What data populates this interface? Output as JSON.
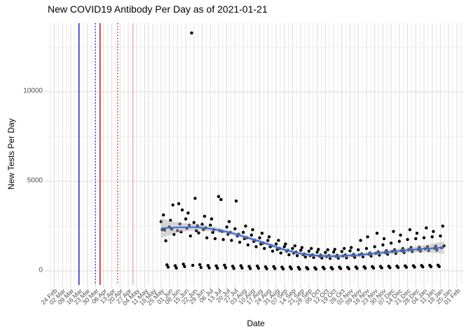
{
  "chart_data": {
    "type": "scatter",
    "title": "New COVID19 Antibody Per Day as of 2021-01-21",
    "xlabel": "Date",
    "ylabel": "New Tests Per Day",
    "legend": "none",
    "grid": true,
    "x_axis_start_date": "2020-02-24",
    "x_tick_interval_days": 7,
    "x_tick_labels": [
      "24 Feb",
      "02 Mar",
      "09 Mar",
      "16 Mar",
      "23 Mar",
      "30 Mar",
      "06 Apr",
      "13 Apr",
      "20 Apr",
      "27 Apr",
      "04 May",
      "11 May",
      "18 May",
      "25 May",
      "01 Jun",
      "08 Jun",
      "15 Jun",
      "22 Jun",
      "29 Jun",
      "06 Jul",
      "13 Jul",
      "20 Jul",
      "27 Jul",
      "03 Aug",
      "10 Aug",
      "17 Aug",
      "24 Aug",
      "31 Aug",
      "07 Sep",
      "14 Sep",
      "21 Sep",
      "28 Sep",
      "05 Oct",
      "12 Oct",
      "19 Oct",
      "26 Oct",
      "02 Nov",
      "09 Nov",
      "16 Nov",
      "23 Nov",
      "30 Nov",
      "07 Dec",
      "14 Dec",
      "21 Dec",
      "28 Dec",
      "04 Jan",
      "11 Jan",
      "18 Jan",
      "25 Jan",
      "01 Feb"
    ],
    "y_ticks": [
      0,
      5000,
      10000
    ],
    "y_minor_ticks": [
      2500,
      7500,
      12500
    ],
    "ylim": [
      -780,
      13830
    ],
    "colors": {
      "point": "#000000",
      "smooth_line": "#3366E0",
      "ribbon": "#AFAFAF",
      "grid_major": "#DBDBDB",
      "grid_minor": "#ECECEC",
      "tick_mark": "#CFCFCF",
      "axis_text": "#4D4D4D",
      "title_text": "#000000",
      "background": "#FFFFFF",
      "vline_blue": "#1414CC",
      "vline_red": "#DD0000",
      "vline_pink": "#F3AABB"
    },
    "reference_lines": [
      {
        "date_offset_days": 21,
        "approx_date": "2020-03-16",
        "color": "#1414CC",
        "style": "solid"
      },
      {
        "date_offset_days": 35,
        "approx_date": "2020-03-30",
        "color": "#1414CC",
        "style": "dotted"
      },
      {
        "date_offset_days": 39,
        "approx_date": "2020-04-03",
        "color": "#DD0000",
        "style": "solid"
      },
      {
        "date_offset_days": 54,
        "approx_date": "2020-04-18",
        "color": "#CC2222",
        "style": "dotted"
      },
      {
        "date_offset_days": 67,
        "approx_date": "2020-05-01",
        "color": "#F3AABB",
        "style": "solid"
      },
      {
        "date_offset_days": 80,
        "approx_date": "2020-05-14",
        "color": "#F6C2CE",
        "style": "dotted"
      }
    ],
    "series": [
      {
        "name": "daily_new_antibody_tests",
        "type": "scatter",
        "color": "#000000",
        "x_unit": "days_since_2020-02-24",
        "points": [
          [
            91,
            2750
          ],
          [
            92,
            2300
          ],
          [
            93,
            3120
          ],
          [
            94,
            2280
          ],
          [
            95,
            1680
          ],
          [
            96,
            340
          ],
          [
            97,
            210
          ],
          [
            98,
            2460
          ],
          [
            99,
            2820
          ],
          [
            100,
            2330
          ],
          [
            101,
            3680
          ],
          [
            102,
            2040
          ],
          [
            103,
            290
          ],
          [
            104,
            160
          ],
          [
            105,
            2250
          ],
          [
            106,
            3750
          ],
          [
            107,
            2620
          ],
          [
            108,
            2180
          ],
          [
            109,
            3400
          ],
          [
            110,
            380
          ],
          [
            111,
            240
          ],
          [
            112,
            2900
          ],
          [
            113,
            2380
          ],
          [
            114,
            3230
          ],
          [
            115,
            2550
          ],
          [
            116,
            1950
          ],
          [
            117,
            13280
          ],
          [
            118,
            310
          ],
          [
            119,
            2700
          ],
          [
            120,
            4050
          ],
          [
            121,
            2250
          ],
          [
            122,
            2520
          ],
          [
            123,
            2120
          ],
          [
            124,
            350
          ],
          [
            125,
            190
          ],
          [
            126,
            2600
          ],
          [
            127,
            2300
          ],
          [
            128,
            3050
          ],
          [
            129,
            2400
          ],
          [
            130,
            1850
          ],
          [
            131,
            300
          ],
          [
            132,
            170
          ],
          [
            133,
            2550
          ],
          [
            134,
            2900
          ],
          [
            135,
            2150
          ],
          [
            136,
            2300
          ],
          [
            137,
            1800
          ],
          [
            138,
            280
          ],
          [
            139,
            150
          ],
          [
            140,
            4150
          ],
          [
            141,
            2250
          ],
          [
            142,
            3980
          ],
          [
            143,
            2200
          ],
          [
            144,
            1750
          ],
          [
            145,
            320
          ],
          [
            146,
            180
          ],
          [
            147,
            2450
          ],
          [
            148,
            2050
          ],
          [
            149,
            2750
          ],
          [
            150,
            2150
          ],
          [
            151,
            1700
          ],
          [
            152,
            260
          ],
          [
            153,
            140
          ],
          [
            154,
            2350
          ],
          [
            155,
            3900
          ],
          [
            156,
            1950
          ],
          [
            157,
            2050
          ],
          [
            158,
            1600
          ],
          [
            159,
            290
          ],
          [
            160,
            160
          ],
          [
            161,
            2150
          ],
          [
            162,
            1800
          ],
          [
            163,
            2500
          ],
          [
            164,
            1850
          ],
          [
            165,
            1450
          ],
          [
            166,
            250
          ],
          [
            167,
            130
          ],
          [
            168,
            2000
          ],
          [
            169,
            2300
          ],
          [
            170,
            1650
          ],
          [
            171,
            1700
          ],
          [
            172,
            1350
          ],
          [
            173,
            270
          ],
          [
            174,
            150
          ],
          [
            175,
            1850
          ],
          [
            176,
            1500
          ],
          [
            177,
            2100
          ],
          [
            178,
            1550
          ],
          [
            179,
            1250
          ],
          [
            180,
            230
          ],
          [
            181,
            120
          ],
          [
            182,
            1700
          ],
          [
            183,
            1900
          ],
          [
            184,
            1350
          ],
          [
            185,
            1400
          ],
          [
            186,
            1100
          ],
          [
            187,
            240
          ],
          [
            188,
            130
          ],
          [
            189,
            1500
          ],
          [
            190,
            1200
          ],
          [
            191,
            1700
          ],
          [
            192,
            1250
          ],
          [
            193,
            1000
          ],
          [
            194,
            210
          ],
          [
            195,
            110
          ],
          [
            196,
            1350
          ],
          [
            197,
            1500
          ],
          [
            198,
            1100
          ],
          [
            199,
            1150
          ],
          [
            200,
            900
          ],
          [
            201,
            220
          ],
          [
            202,
            120
          ],
          [
            203,
            1250
          ],
          [
            204,
            1000
          ],
          [
            205,
            1400
          ],
          [
            206,
            1050
          ],
          [
            207,
            850
          ],
          [
            208,
            200
          ],
          [
            209,
            100
          ],
          [
            210,
            1150
          ],
          [
            211,
            1300
          ],
          [
            212,
            900
          ],
          [
            213,
            950
          ],
          [
            214,
            780
          ],
          [
            215,
            190
          ],
          [
            216,
            110
          ],
          [
            217,
            1100
          ],
          [
            218,
            850
          ],
          [
            219,
            1250
          ],
          [
            220,
            900
          ],
          [
            221,
            750
          ],
          [
            222,
            180
          ],
          [
            223,
            100
          ],
          [
            224,
            1050
          ],
          [
            225,
            1200
          ],
          [
            226,
            820
          ],
          [
            227,
            880
          ],
          [
            228,
            720
          ],
          [
            229,
            200
          ],
          [
            230,
            120
          ],
          [
            231,
            1030
          ],
          [
            232,
            800
          ],
          [
            233,
            1180
          ],
          [
            234,
            860
          ],
          [
            235,
            700
          ],
          [
            236,
            190
          ],
          [
            237,
            110
          ],
          [
            238,
            1050
          ],
          [
            239,
            1200
          ],
          [
            240,
            810
          ],
          [
            241,
            870
          ],
          [
            242,
            710
          ],
          [
            243,
            210
          ],
          [
            244,
            130
          ],
          [
            245,
            1080
          ],
          [
            246,
            830
          ],
          [
            247,
            1250
          ],
          [
            248,
            890
          ],
          [
            249,
            730
          ],
          [
            250,
            200
          ],
          [
            251,
            120
          ],
          [
            252,
            1120
          ],
          [
            253,
            1300
          ],
          [
            254,
            860
          ],
          [
            255,
            920
          ],
          [
            256,
            760
          ],
          [
            257,
            220
          ],
          [
            258,
            140
          ],
          [
            259,
            1180
          ],
          [
            260,
            890
          ],
          [
            261,
            1700
          ],
          [
            262,
            950
          ],
          [
            263,
            790
          ],
          [
            264,
            230
          ],
          [
            265,
            150
          ],
          [
            266,
            1250
          ],
          [
            267,
            1900
          ],
          [
            268,
            930
          ],
          [
            269,
            1000
          ],
          [
            270,
            830
          ],
          [
            271,
            240
          ],
          [
            272,
            160
          ],
          [
            273,
            1350
          ],
          [
            274,
            980
          ],
          [
            275,
            2100
          ],
          [
            276,
            1060
          ],
          [
            277,
            880
          ],
          [
            278,
            250
          ],
          [
            279,
            170
          ],
          [
            280,
            1450
          ],
          [
            281,
            1800
          ],
          [
            282,
            1030
          ],
          [
            283,
            1120
          ],
          [
            284,
            930
          ],
          [
            285,
            260
          ],
          [
            286,
            180
          ],
          [
            287,
            1550
          ],
          [
            288,
            1080
          ],
          [
            289,
            2200
          ],
          [
            290,
            1180
          ],
          [
            291,
            980
          ],
          [
            292,
            270
          ],
          [
            293,
            190
          ],
          [
            294,
            1650
          ],
          [
            295,
            2000
          ],
          [
            296,
            1130
          ],
          [
            297,
            1240
          ],
          [
            298,
            1030
          ],
          [
            299,
            280
          ],
          [
            300,
            200
          ],
          [
            301,
            1750
          ],
          [
            302,
            1180
          ],
          [
            303,
            2300
          ],
          [
            304,
            1300
          ],
          [
            305,
            1080
          ],
          [
            306,
            290
          ],
          [
            307,
            210
          ],
          [
            308,
            1800
          ],
          [
            309,
            2100
          ],
          [
            310,
            1200
          ],
          [
            311,
            1320
          ],
          [
            312,
            1100
          ],
          [
            313,
            300
          ],
          [
            314,
            220
          ],
          [
            315,
            1850
          ],
          [
            316,
            1230
          ],
          [
            317,
            2400
          ],
          [
            318,
            1350
          ],
          [
            319,
            1130
          ],
          [
            320,
            310
          ],
          [
            321,
            230
          ],
          [
            322,
            1900
          ],
          [
            323,
            2200
          ],
          [
            324,
            1260
          ],
          [
            325,
            1380
          ],
          [
            326,
            1160
          ],
          [
            327,
            320
          ],
          [
            328,
            240
          ],
          [
            329,
            1950
          ],
          [
            330,
            1290
          ],
          [
            331,
            2500
          ],
          [
            332,
            1400
          ]
        ]
      },
      {
        "name": "loess_smooth",
        "type": "line",
        "color": "#3366E0",
        "points": [
          [
            91,
            2380
          ],
          [
            106,
            2430
          ],
          [
            121,
            2440
          ],
          [
            136,
            2330
          ],
          [
            151,
            2120
          ],
          [
            166,
            1830
          ],
          [
            181,
            1520
          ],
          [
            196,
            1180
          ],
          [
            211,
            950
          ],
          [
            226,
            840
          ],
          [
            241,
            820
          ],
          [
            256,
            870
          ],
          [
            271,
            960
          ],
          [
            286,
            1060
          ],
          [
            301,
            1160
          ],
          [
            316,
            1240
          ],
          [
            332,
            1300
          ]
        ]
      },
      {
        "name": "confidence_ribbon",
        "type": "band",
        "color": "#AFAFAF",
        "half_width": [
          [
            91,
            550
          ],
          [
            106,
            260
          ],
          [
            121,
            170
          ],
          [
            136,
            140
          ],
          [
            151,
            120
          ],
          [
            166,
            110
          ],
          [
            181,
            100
          ],
          [
            196,
            95
          ],
          [
            211,
            95
          ],
          [
            226,
            100
          ],
          [
            241,
            105
          ],
          [
            256,
            105
          ],
          [
            271,
            110
          ],
          [
            286,
            120
          ],
          [
            301,
            140
          ],
          [
            316,
            200
          ],
          [
            332,
            350
          ]
        ]
      }
    ]
  }
}
